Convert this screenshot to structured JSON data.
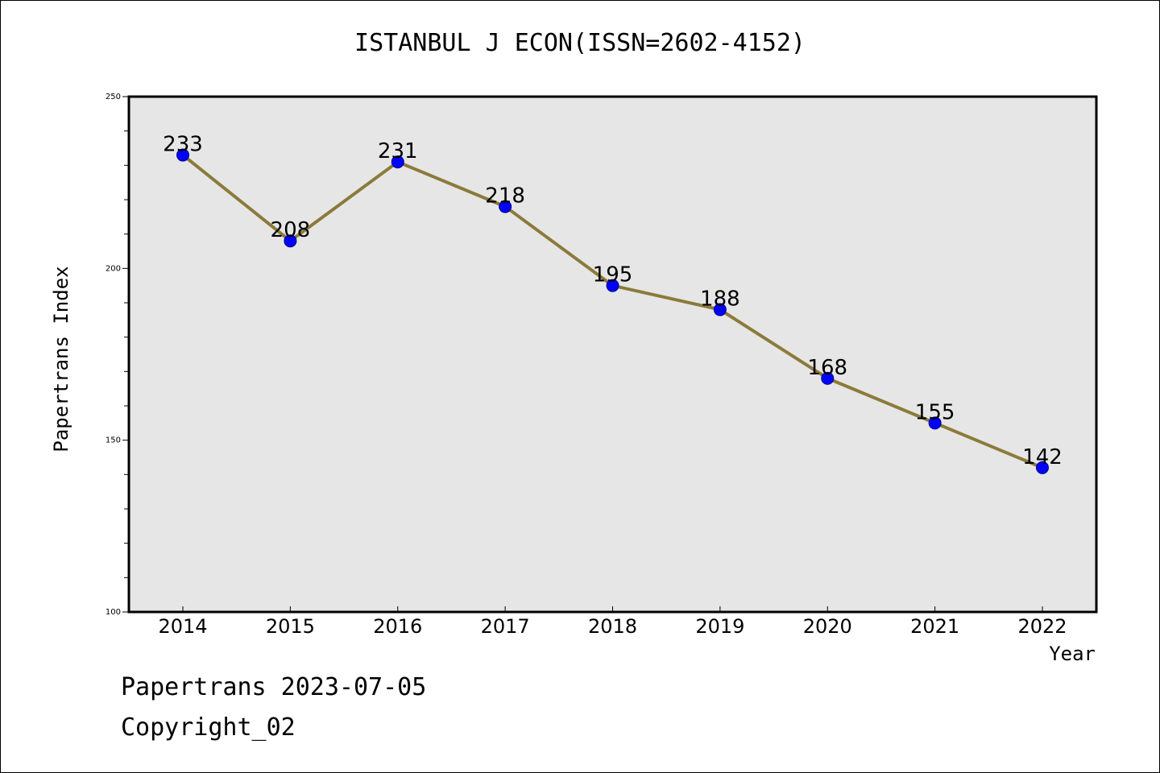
{
  "colors": {
    "plot_background": "#e6e6e6",
    "line": "#8b7a3a",
    "marker_fill": "#0000ff",
    "marker_stroke": "#00008b",
    "axis": "#000000"
  },
  "chart_data": {
    "type": "line",
    "title": "ISTANBUL J ECON(ISSN=2602-4152)",
    "xlabel": "Year",
    "ylabel": "Papertrans Index",
    "categories": [
      "2014",
      "2015",
      "2016",
      "2017",
      "2018",
      "2019",
      "2020",
      "2021",
      "2022"
    ],
    "series": [
      {
        "values": [
          233,
          208,
          231,
          218,
          195,
          188,
          168,
          155,
          142
        ],
        "data_labels": [
          "233",
          "208",
          "231",
          "218",
          "195",
          "188",
          "168",
          "155",
          "142"
        ]
      }
    ],
    "ylim": [
      100,
      250
    ],
    "y_major_ticks": [
      100,
      150,
      200,
      250
    ],
    "y_minor_tick_step": 10,
    "grid": false,
    "legend": "none"
  },
  "footer": {
    "line1": "Papertrans 2023-07-05",
    "line2": "Copyright_02"
  }
}
